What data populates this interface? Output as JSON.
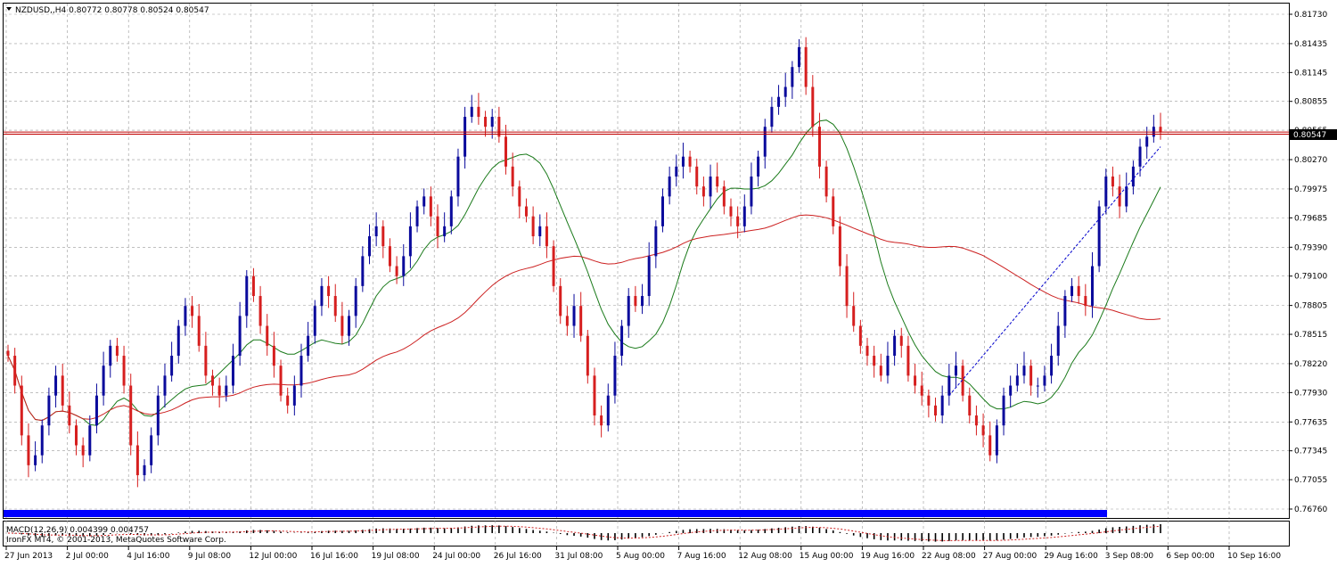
{
  "window": {
    "symbol_title": "NZDUSD,,H4  0.80772 0.80778 0.80524 0.80547",
    "macd_title": "MACD(12,26,9) 0.004399 0.004757",
    "copyright": "IronFX MT4, © 2001-2013, MetaQuotes Software Corp.",
    "current_price_label": "0.80547"
  },
  "colors": {
    "bull": "#0a0a9c",
    "bear": "#d61f1f",
    "ma_fast": "#1a7a1a",
    "ma_slow": "#cc2020",
    "grid": "#9a9a9a",
    "band": "#0000ff"
  },
  "chart_data": {
    "type": "candlestick",
    "symbol": "NZDUSD",
    "timeframe": "H4",
    "ylim": [
      0.7676,
      0.8173
    ],
    "y_ticks": [
      "0.81730",
      "0.81435",
      "0.81145",
      "0.80855",
      "0.80565",
      "0.80270",
      "0.79975",
      "0.79685",
      "0.79390",
      "0.79100",
      "0.78805",
      "0.78515",
      "0.78220",
      "0.77930",
      "0.77635",
      "0.77345",
      "0.77055",
      "0.76760"
    ],
    "x_ticks": [
      "27 Jun 2013",
      "2 Jul 00:00",
      "4 Jul 16:00",
      "9 Jul 08:00",
      "12 Jul 00:00",
      "16 Jul 16:00",
      "19 Jul 08:00",
      "24 Jul 00:00",
      "26 Jul 16:00",
      "31 Jul 08:00",
      "5 Aug 00:00",
      "7 Aug 16:00",
      "12 Aug 08:00",
      "15 Aug 00:00",
      "19 Aug 16:00",
      "22 Aug 08:00",
      "27 Aug 00:00",
      "29 Aug 16:00",
      "3 Sep 08:00",
      "6 Sep 00:00",
      "10 Sep 16:00"
    ],
    "current_price": 0.80547,
    "horizontal_lines": [
      0.80547,
      0.80525
    ],
    "closes": [
      0.783,
      0.78,
      0.775,
      0.772,
      0.773,
      0.776,
      0.779,
      0.781,
      0.778,
      0.776,
      0.774,
      0.773,
      0.776,
      0.779,
      0.782,
      0.784,
      0.783,
      0.78,
      0.774,
      0.771,
      0.772,
      0.775,
      0.779,
      0.781,
      0.783,
      0.786,
      0.788,
      0.787,
      0.784,
      0.781,
      0.78,
      0.779,
      0.78,
      0.783,
      0.787,
      0.791,
      0.789,
      0.786,
      0.784,
      0.782,
      0.779,
      0.778,
      0.78,
      0.783,
      0.785,
      0.788,
      0.79,
      0.789,
      0.787,
      0.785,
      0.787,
      0.79,
      0.793,
      0.795,
      0.796,
      0.794,
      0.792,
      0.791,
      0.793,
      0.796,
      0.798,
      0.799,
      0.797,
      0.795,
      0.796,
      0.799,
      0.803,
      0.807,
      0.808,
      0.807,
      0.806,
      0.807,
      0.805,
      0.802,
      0.8,
      0.798,
      0.797,
      0.795,
      0.796,
      0.794,
      0.79,
      0.787,
      0.786,
      0.788,
      0.785,
      0.781,
      0.777,
      0.776,
      0.779,
      0.783,
      0.786,
      0.789,
      0.788,
      0.789,
      0.793,
      0.796,
      0.799,
      0.801,
      0.802,
      0.803,
      0.802,
      0.8,
      0.799,
      0.801,
      0.8,
      0.798,
      0.797,
      0.796,
      0.798,
      0.801,
      0.803,
      0.806,
      0.808,
      0.809,
      0.81,
      0.812,
      0.814,
      0.81,
      0.806,
      0.802,
      0.799,
      0.796,
      0.792,
      0.788,
      0.786,
      0.784,
      0.783,
      0.782,
      0.781,
      0.783,
      0.785,
      0.784,
      0.781,
      0.78,
      0.779,
      0.778,
      0.777,
      0.779,
      0.781,
      0.782,
      0.779,
      0.777,
      0.776,
      0.775,
      0.773,
      0.776,
      0.779,
      0.78,
      0.781,
      0.782,
      0.78,
      0.78,
      0.781,
      0.783,
      0.786,
      0.789,
      0.79,
      0.789,
      0.788,
      0.792,
      0.798,
      0.801,
      0.8,
      0.798,
      0.8,
      0.802,
      0.804,
      0.805,
      0.806,
      0.8055
    ],
    "indicators": [
      {
        "name": "MA",
        "color": "#1a7a1a"
      },
      {
        "name": "MA",
        "color": "#cc2020"
      }
    ],
    "trendlines": [
      {
        "from": [
          0.779
        ],
        "to": [
          0.804
        ],
        "style": "dashed",
        "color": "#0000cc"
      }
    ]
  }
}
